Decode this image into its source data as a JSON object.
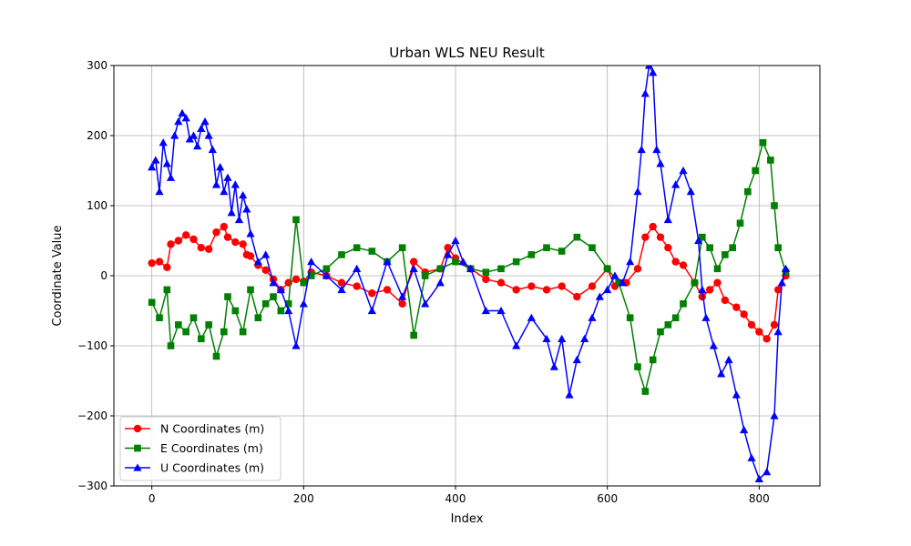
{
  "chart_data": {
    "type": "line",
    "title": "Urban WLS NEU Result",
    "xlabel": "Index",
    "ylabel": "Coordinate Value",
    "xlim": [
      -50,
      880
    ],
    "ylim": [
      -300,
      300
    ],
    "x_ticks": [
      0,
      200,
      400,
      600,
      800
    ],
    "y_ticks": [
      -300,
      -200,
      -100,
      0,
      100,
      200,
      300
    ],
    "grid": true,
    "legend_position": "lower-left",
    "series": [
      {
        "name": "N Coordinates (m)",
        "color": "#ff0000",
        "marker": "circle",
        "points": [
          [
            0,
            18
          ],
          [
            10,
            20
          ],
          [
            20,
            12
          ],
          [
            25,
            45
          ],
          [
            35,
            50
          ],
          [
            45,
            58
          ],
          [
            55,
            52
          ],
          [
            65,
            40
          ],
          [
            75,
            38
          ],
          [
            85,
            62
          ],
          [
            95,
            70
          ],
          [
            100,
            55
          ],
          [
            110,
            48
          ],
          [
            120,
            45
          ],
          [
            125,
            30
          ],
          [
            130,
            28
          ],
          [
            140,
            15
          ],
          [
            150,
            8
          ],
          [
            160,
            -5
          ],
          [
            170,
            -20
          ],
          [
            180,
            -10
          ],
          [
            190,
            -5
          ],
          [
            200,
            -8
          ],
          [
            210,
            5
          ],
          [
            230,
            0
          ],
          [
            250,
            -10
          ],
          [
            270,
            -15
          ],
          [
            290,
            -25
          ],
          [
            310,
            -20
          ],
          [
            330,
            -40
          ],
          [
            345,
            20
          ],
          [
            360,
            5
          ],
          [
            380,
            10
          ],
          [
            390,
            40
          ],
          [
            400,
            25
          ],
          [
            420,
            10
          ],
          [
            440,
            -5
          ],
          [
            460,
            -10
          ],
          [
            480,
            -20
          ],
          [
            500,
            -15
          ],
          [
            520,
            -20
          ],
          [
            540,
            -15
          ],
          [
            560,
            -30
          ],
          [
            580,
            -15
          ],
          [
            600,
            10
          ],
          [
            610,
            -15
          ],
          [
            625,
            -10
          ],
          [
            640,
            10
          ],
          [
            650,
            55
          ],
          [
            660,
            70
          ],
          [
            670,
            55
          ],
          [
            680,
            40
          ],
          [
            690,
            20
          ],
          [
            700,
            15
          ],
          [
            715,
            -10
          ],
          [
            725,
            -30
          ],
          [
            735,
            -20
          ],
          [
            745,
            -10
          ],
          [
            755,
            -35
          ],
          [
            770,
            -45
          ],
          [
            780,
            -55
          ],
          [
            790,
            -70
          ],
          [
            800,
            -80
          ],
          [
            810,
            -90
          ],
          [
            820,
            -70
          ],
          [
            825,
            -20
          ],
          [
            835,
            0
          ]
        ]
      },
      {
        "name": "E Coordinates (m)",
        "color": "#008000",
        "marker": "square",
        "points": [
          [
            0,
            -38
          ],
          [
            10,
            -60
          ],
          [
            20,
            -20
          ],
          [
            25,
            -100
          ],
          [
            35,
            -70
          ],
          [
            45,
            -80
          ],
          [
            55,
            -60
          ],
          [
            65,
            -90
          ],
          [
            75,
            -70
          ],
          [
            85,
            -115
          ],
          [
            95,
            -80
          ],
          [
            100,
            -30
          ],
          [
            110,
            -50
          ],
          [
            120,
            -80
          ],
          [
            130,
            -20
          ],
          [
            140,
            -60
          ],
          [
            150,
            -40
          ],
          [
            160,
            -30
          ],
          [
            170,
            -50
          ],
          [
            180,
            -40
          ],
          [
            190,
            80
          ],
          [
            200,
            -10
          ],
          [
            210,
            0
          ],
          [
            230,
            10
          ],
          [
            250,
            30
          ],
          [
            270,
            40
          ],
          [
            290,
            35
          ],
          [
            310,
            20
          ],
          [
            330,
            40
          ],
          [
            345,
            -85
          ],
          [
            360,
            0
          ],
          [
            380,
            10
          ],
          [
            400,
            20
          ],
          [
            420,
            10
          ],
          [
            440,
            5
          ],
          [
            460,
            10
          ],
          [
            480,
            20
          ],
          [
            500,
            30
          ],
          [
            520,
            40
          ],
          [
            540,
            35
          ],
          [
            560,
            55
          ],
          [
            580,
            40
          ],
          [
            600,
            10
          ],
          [
            615,
            -10
          ],
          [
            630,
            -60
          ],
          [
            640,
            -130
          ],
          [
            650,
            -165
          ],
          [
            660,
            -120
          ],
          [
            670,
            -80
          ],
          [
            680,
            -70
          ],
          [
            690,
            -60
          ],
          [
            700,
            -40
          ],
          [
            715,
            -10
          ],
          [
            725,
            55
          ],
          [
            735,
            40
          ],
          [
            745,
            10
          ],
          [
            755,
            30
          ],
          [
            765,
            40
          ],
          [
            775,
            75
          ],
          [
            785,
            120
          ],
          [
            795,
            150
          ],
          [
            805,
            190
          ],
          [
            815,
            165
          ],
          [
            820,
            100
          ],
          [
            825,
            40
          ],
          [
            835,
            5
          ]
        ]
      },
      {
        "name": "U Coordinates (m)",
        "color": "#0000ff",
        "marker": "triangle",
        "points": [
          [
            0,
            155
          ],
          [
            5,
            165
          ],
          [
            10,
            120
          ],
          [
            15,
            190
          ],
          [
            20,
            160
          ],
          [
            25,
            140
          ],
          [
            30,
            200
          ],
          [
            35,
            220
          ],
          [
            40,
            232
          ],
          [
            45,
            225
          ],
          [
            50,
            195
          ],
          [
            55,
            200
          ],
          [
            60,
            185
          ],
          [
            65,
            210
          ],
          [
            70,
            220
          ],
          [
            75,
            200
          ],
          [
            80,
            180
          ],
          [
            85,
            130
          ],
          [
            90,
            155
          ],
          [
            95,
            120
          ],
          [
            100,
            140
          ],
          [
            105,
            90
          ],
          [
            110,
            130
          ],
          [
            115,
            80
          ],
          [
            120,
            115
          ],
          [
            125,
            95
          ],
          [
            130,
            60
          ],
          [
            140,
            20
          ],
          [
            150,
            30
          ],
          [
            160,
            -10
          ],
          [
            170,
            -20
          ],
          [
            180,
            -50
          ],
          [
            190,
            -100
          ],
          [
            200,
            -40
          ],
          [
            210,
            20
          ],
          [
            230,
            0
          ],
          [
            250,
            -20
          ],
          [
            270,
            10
          ],
          [
            290,
            -50
          ],
          [
            310,
            20
          ],
          [
            330,
            -30
          ],
          [
            345,
            10
          ],
          [
            360,
            -40
          ],
          [
            380,
            -10
          ],
          [
            390,
            30
          ],
          [
            400,
            50
          ],
          [
            410,
            20
          ],
          [
            420,
            10
          ],
          [
            440,
            -50
          ],
          [
            460,
            -50
          ],
          [
            480,
            -100
          ],
          [
            500,
            -60
          ],
          [
            520,
            -90
          ],
          [
            530,
            -130
          ],
          [
            540,
            -90
          ],
          [
            550,
            -170
          ],
          [
            560,
            -120
          ],
          [
            570,
            -90
          ],
          [
            580,
            -60
          ],
          [
            590,
            -30
          ],
          [
            600,
            -20
          ],
          [
            610,
            0
          ],
          [
            620,
            -10
          ],
          [
            630,
            20
          ],
          [
            640,
            120
          ],
          [
            645,
            180
          ],
          [
            650,
            260
          ],
          [
            655,
            300
          ],
          [
            660,
            290
          ],
          [
            665,
            180
          ],
          [
            670,
            160
          ],
          [
            680,
            80
          ],
          [
            690,
            130
          ],
          [
            700,
            150
          ],
          [
            710,
            120
          ],
          [
            720,
            50
          ],
          [
            725,
            -20
          ],
          [
            730,
            -60
          ],
          [
            740,
            -100
          ],
          [
            750,
            -140
          ],
          [
            760,
            -120
          ],
          [
            770,
            -170
          ],
          [
            780,
            -220
          ],
          [
            790,
            -260
          ],
          [
            800,
            -290
          ],
          [
            810,
            -280
          ],
          [
            820,
            -200
          ],
          [
            825,
            -80
          ],
          [
            830,
            -10
          ],
          [
            835,
            10
          ]
        ]
      }
    ]
  }
}
